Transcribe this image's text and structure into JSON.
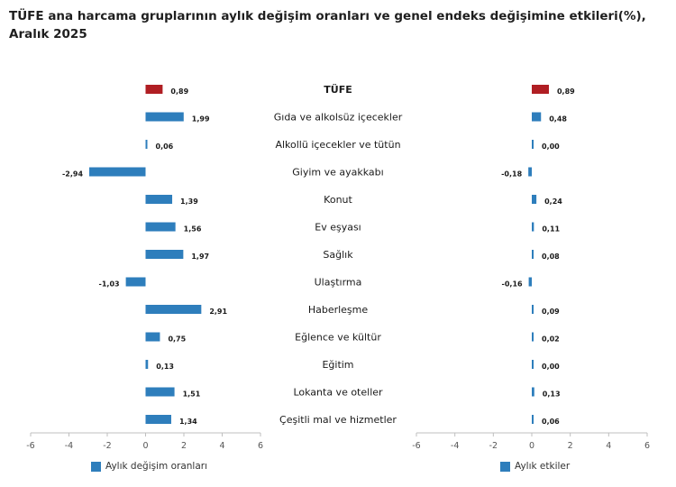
{
  "title": "TÜFE ana harcama gruplarının aylık değişim oranları ve genel endeks değişimine etkileri(%), Aralık 2025",
  "colors": {
    "highlight": "#b01e23",
    "bar": "#2e7ebc",
    "axis": "#bfbfbf"
  },
  "chart_data": {
    "type": "bar",
    "orientation": "horizontal",
    "title": "TÜFE ana harcama gruplarının aylık değişim oranları ve genel endeks değişimine etkileri(%), Aralık 2025",
    "categories": [
      "TÜFE",
      "Gıda ve alkolsüz içecekler",
      "Alkollü içecekler ve tütün",
      "Giyim ve ayakkabı",
      "Konut",
      "Ev eşyası",
      "Sağlık",
      "Ulaştırma",
      "Haberleşme",
      "Eğlence ve kültür",
      "Eğitim",
      "Lokanta ve oteller",
      "Çeşitli mal ve hizmetler"
    ],
    "highlight_index": 0,
    "series": [
      {
        "name": "Aylık değişim oranları",
        "values": [
          0.89,
          1.99,
          0.06,
          -2.94,
          1.39,
          1.56,
          1.97,
          -1.03,
          2.91,
          0.75,
          0.13,
          1.51,
          1.34
        ],
        "labels": [
          "0,89",
          "1,99",
          "0,06",
          "-2,94",
          "1,39",
          "1,56",
          "1,97",
          "-1,03",
          "2,91",
          "0,75",
          "0,13",
          "1,51",
          "1,34"
        ],
        "xlim": [
          -6,
          6
        ],
        "ticks": [
          "-6",
          "-4",
          "-2",
          "0",
          "2",
          "4",
          "6"
        ]
      },
      {
        "name": "Aylık etkiler",
        "values": [
          0.89,
          0.48,
          0.0,
          -0.18,
          0.24,
          0.11,
          0.08,
          -0.16,
          0.09,
          0.02,
          0.0,
          0.13,
          0.06
        ],
        "labels": [
          "0,89",
          "0,48",
          "0,00",
          "-0,18",
          "0,24",
          "0,11",
          "0,08",
          "-0,16",
          "0,09",
          "0,02",
          "0,00",
          "0,13",
          "0,06"
        ],
        "xlim": [
          -6,
          6
        ],
        "ticks": [
          "-6",
          "-4",
          "-2",
          "0",
          "2",
          "4",
          "6"
        ]
      }
    ]
  }
}
